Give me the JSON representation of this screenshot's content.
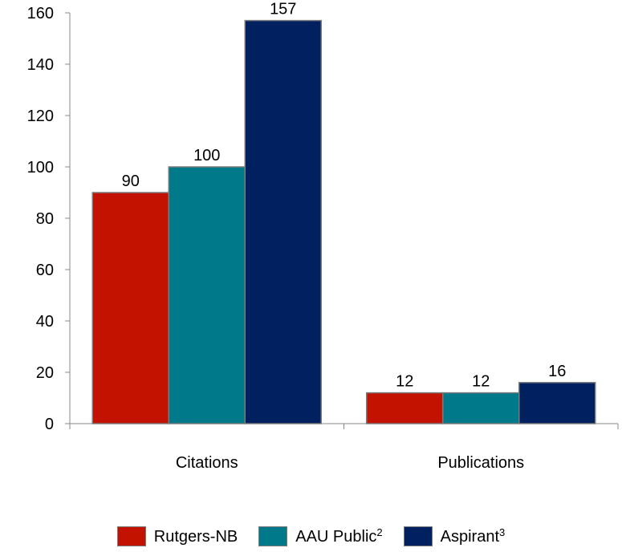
{
  "chart_data": {
    "type": "bar",
    "categories": [
      "Citations",
      "Publications"
    ],
    "series": [
      {
        "name": "Rutgers-NB",
        "name_sup": "",
        "color": "#c41200",
        "values": [
          90,
          12
        ]
      },
      {
        "name": "AAU Public",
        "name_sup": "2",
        "color": "#007a8a",
        "values": [
          100,
          12
        ]
      },
      {
        "name": "Aspirant",
        "name_sup": "3",
        "color": "#002060",
        "values": [
          157,
          16
        ]
      }
    ],
    "data_labels": [
      [
        "90",
        "12"
      ],
      [
        "100",
        "12"
      ],
      [
        "157",
        "16"
      ]
    ],
    "y_ticks": [
      0,
      20,
      40,
      60,
      80,
      100,
      120,
      140,
      160
    ],
    "ylim": [
      0,
      160
    ],
    "title": "",
    "xlabel": "",
    "ylabel": "",
    "grid": false,
    "legend_position": "bottom"
  }
}
